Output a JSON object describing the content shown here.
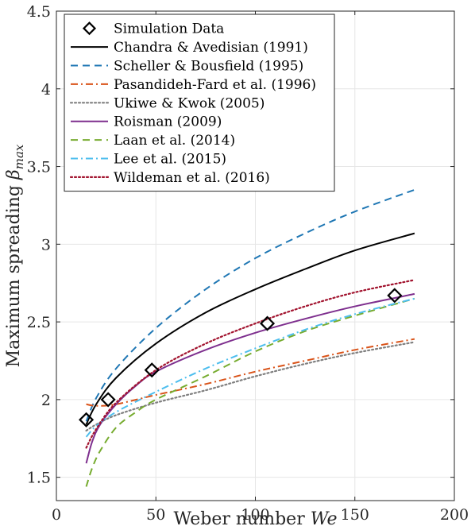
{
  "chart_data": {
    "type": "line",
    "title": "",
    "xlabel": "Weber number",
    "xlabel_symbol": "We",
    "ylabel": "Maximum spreading",
    "ylabel_symbol": "β",
    "ylabel_subscript": "max",
    "xlim": [
      0,
      200
    ],
    "ylim": [
      1.35,
      4.5
    ],
    "xticks": [
      "0",
      "50",
      "100",
      "150",
      "200"
    ],
    "yticks": [
      "1.5",
      "2",
      "2.5",
      "3",
      "3.5",
      "4",
      "4.5"
    ],
    "grid": true,
    "legend_position": "top-left",
    "scatter": {
      "name": "Simulation Data",
      "marker": "diamond",
      "x": [
        15,
        26,
        48,
        106,
        170
      ],
      "y": [
        1.87,
        2.0,
        2.19,
        2.49,
        2.67
      ]
    },
    "series": [
      {
        "name": "Chandra & Avedisian (1991)",
        "color": "#000000",
        "style": "solid",
        "x": [
          15,
          20,
          30,
          50,
          75,
          100,
          125,
          150,
          180
        ],
        "y": [
          1.84,
          1.97,
          2.14,
          2.36,
          2.56,
          2.71,
          2.84,
          2.96,
          3.07
        ]
      },
      {
        "name": "Scheller & Bousfield (1995)",
        "color": "#1f77b4",
        "style": "dash",
        "x": [
          15,
          20,
          30,
          50,
          75,
          100,
          125,
          150,
          180
        ],
        "y": [
          1.86,
          2.01,
          2.2,
          2.46,
          2.71,
          2.91,
          3.07,
          3.21,
          3.35
        ]
      },
      {
        "name": "Pasandideh-Fard et al. (1996)",
        "color": "#d95319",
        "style": "dashdot",
        "x": [
          15,
          20,
          30,
          50,
          75,
          100,
          125,
          150,
          180
        ],
        "y": [
          1.97,
          1.96,
          1.97,
          2.03,
          2.1,
          2.18,
          2.25,
          2.32,
          2.39
        ]
      },
      {
        "name": "Ukiwe & Kwok (2005)",
        "color": "#808080",
        "style": "dot",
        "x": [
          15,
          20,
          30,
          50,
          75,
          100,
          125,
          150,
          180
        ],
        "y": [
          1.8,
          1.84,
          1.9,
          1.98,
          2.06,
          2.15,
          2.23,
          2.3,
          2.37
        ]
      },
      {
        "name": "Roisman (2009)",
        "color": "#7e2f8e",
        "style": "solid",
        "x": [
          15,
          18,
          22,
          30,
          40,
          50,
          75,
          100,
          125,
          150,
          180
        ],
        "y": [
          1.59,
          1.73,
          1.84,
          1.97,
          2.09,
          2.18,
          2.32,
          2.43,
          2.52,
          2.6,
          2.68
        ]
      },
      {
        "name": "Laan et al. (2014)",
        "color": "#77ac30",
        "style": "dash",
        "x": [
          15,
          18,
          22,
          30,
          40,
          50,
          75,
          100,
          125,
          150,
          180
        ],
        "y": [
          1.44,
          1.56,
          1.67,
          1.82,
          1.92,
          2.0,
          2.15,
          2.31,
          2.44,
          2.54,
          2.65
        ]
      },
      {
        "name": "Lee et al. (2015)",
        "color": "#4dbeee",
        "style": "dashdot",
        "x": [
          15,
          20,
          30,
          50,
          75,
          100,
          125,
          150,
          180
        ],
        "y": [
          1.76,
          1.83,
          1.92,
          2.05,
          2.2,
          2.33,
          2.45,
          2.55,
          2.65
        ]
      },
      {
        "name": "Wildeman et al. (2016)",
        "color": "#a2142f",
        "style": "dot",
        "x": [
          15,
          20,
          30,
          50,
          75,
          100,
          125,
          150,
          180
        ],
        "y": [
          1.69,
          1.81,
          1.98,
          2.19,
          2.36,
          2.49,
          2.6,
          2.69,
          2.77
        ]
      }
    ]
  }
}
